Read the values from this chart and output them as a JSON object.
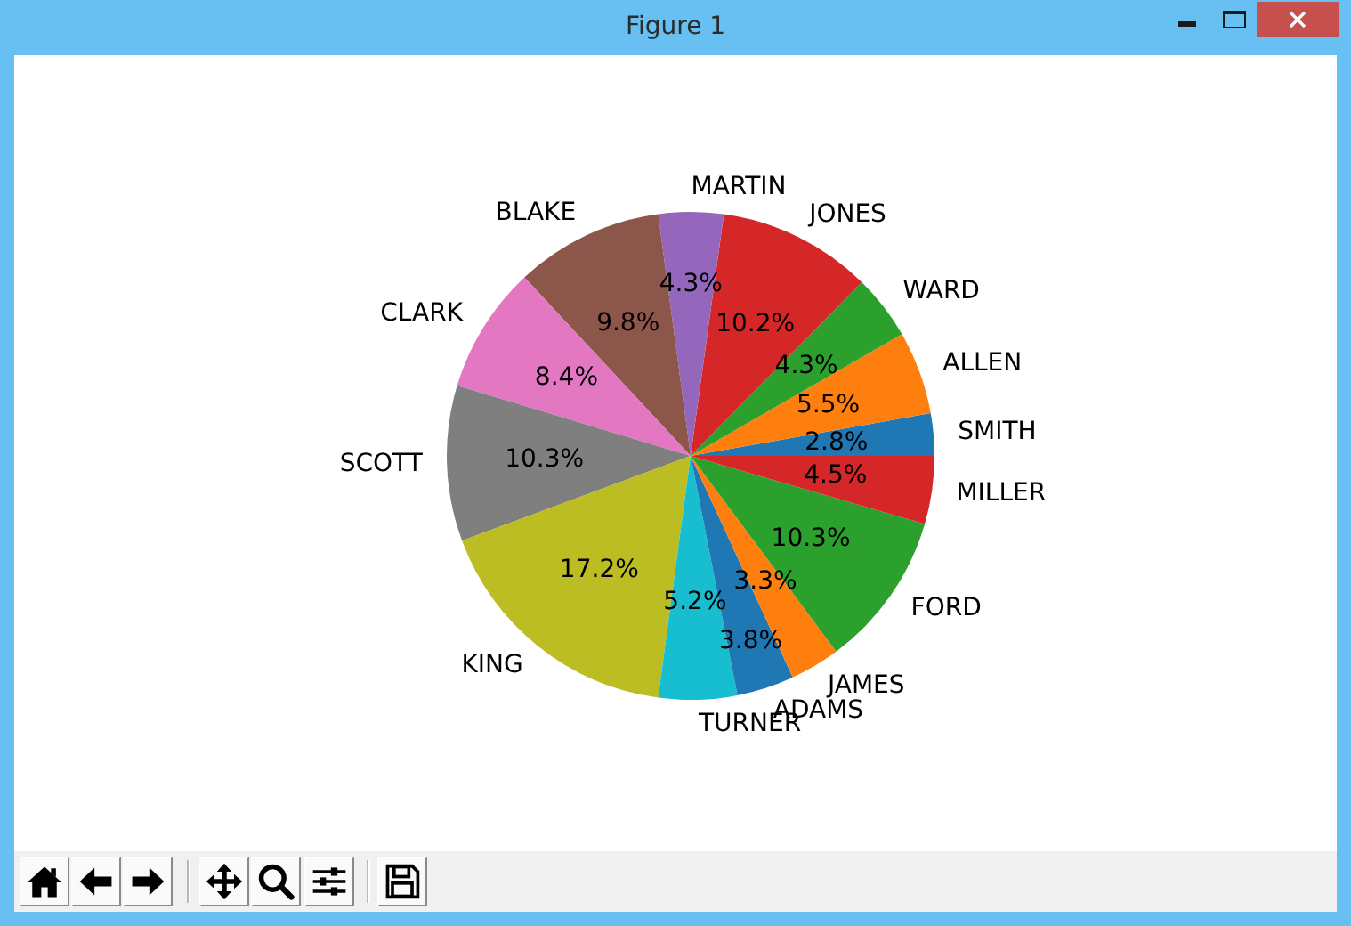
{
  "chart_data": {
    "type": "pie",
    "categories": [
      "SMITH",
      "ALLEN",
      "WARD",
      "JONES",
      "MARTIN",
      "BLAKE",
      "CLARK",
      "SCOTT",
      "KING",
      "TURNER",
      "ADAMS",
      "JAMES",
      "FORD",
      "MILLER"
    ],
    "values": [
      2.8,
      5.5,
      4.3,
      10.2,
      4.3,
      9.8,
      8.4,
      10.3,
      17.2,
      5.2,
      3.8,
      3.3,
      10.3,
      4.5
    ],
    "colors": [
      "#1f77b4",
      "#ff7f0e",
      "#2ca02c",
      "#d62728",
      "#9467bd",
      "#8c564b",
      "#e377c2",
      "#7f7f7f",
      "#bcbd22",
      "#17becf",
      "#1f77b4",
      "#ff7f0e",
      "#2ca02c",
      "#d62728"
    ],
    "value_labels": [
      "2.8%",
      "5.5%",
      "4.3%",
      "10.2%",
      "4.3%",
      "9.8%",
      "8.4%",
      "10.3%",
      "17.2%",
      "5.2%",
      "3.8%",
      "3.3%",
      "10.3%",
      "4.5%"
    ],
    "annotations": [
      "Figure 1"
    ]
  }
}
